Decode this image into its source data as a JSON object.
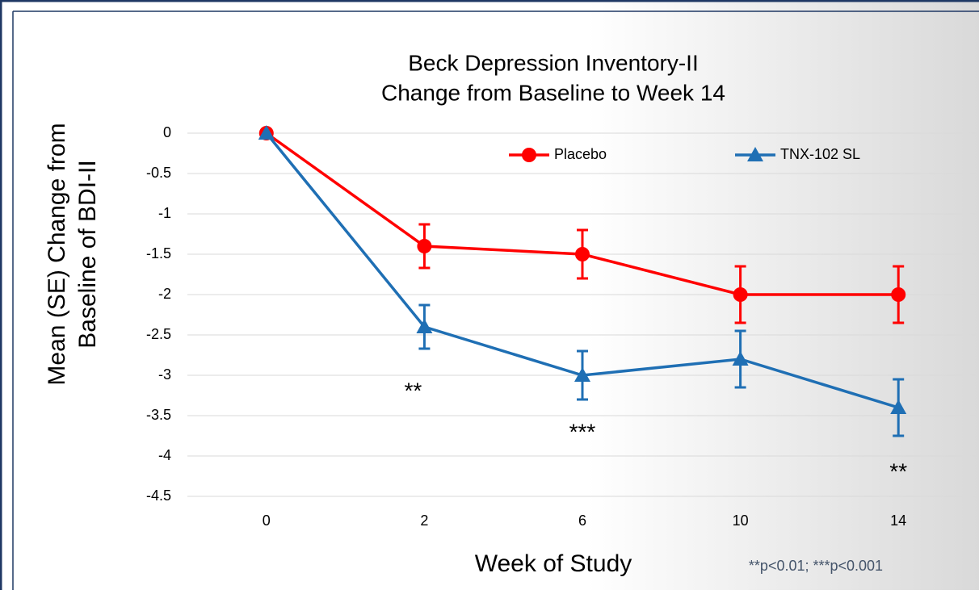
{
  "chart_data": {
    "type": "line",
    "title": [
      "Beck Depression Inventory-II",
      "Change from Baseline to Week 14"
    ],
    "x_label": "Week of Study",
    "y_label": [
      "Mean (SE) Change from",
      "Baseline of BDI-II"
    ],
    "categories": [
      "0",
      "2",
      "6",
      "10",
      "14"
    ],
    "series": [
      {
        "name": "Placebo",
        "color": "#ff0000",
        "marker": "circle",
        "values": [
          0,
          -1.4,
          -1.5,
          -2.0,
          -2.0
        ],
        "errors": [
          null,
          0.27,
          0.3,
          0.35,
          0.35
        ]
      },
      {
        "name": "TNX-102 SL",
        "color": "#1f6fb4",
        "marker": "triangle",
        "values": [
          0,
          -2.4,
          -3.0,
          -2.8,
          -3.4
        ],
        "errors": [
          null,
          0.27,
          0.3,
          0.35,
          0.35
        ]
      }
    ],
    "ylim": [
      -4.5,
      0
    ],
    "yticks": [
      0,
      -0.5,
      -1,
      -1.5,
      -2,
      -2.5,
      -3,
      -3.5,
      -4,
      -4.5
    ],
    "grid": true,
    "annotations": [
      "**",
      "***",
      "**"
    ],
    "footnote": "**p<0.01; ***p<0.001"
  }
}
